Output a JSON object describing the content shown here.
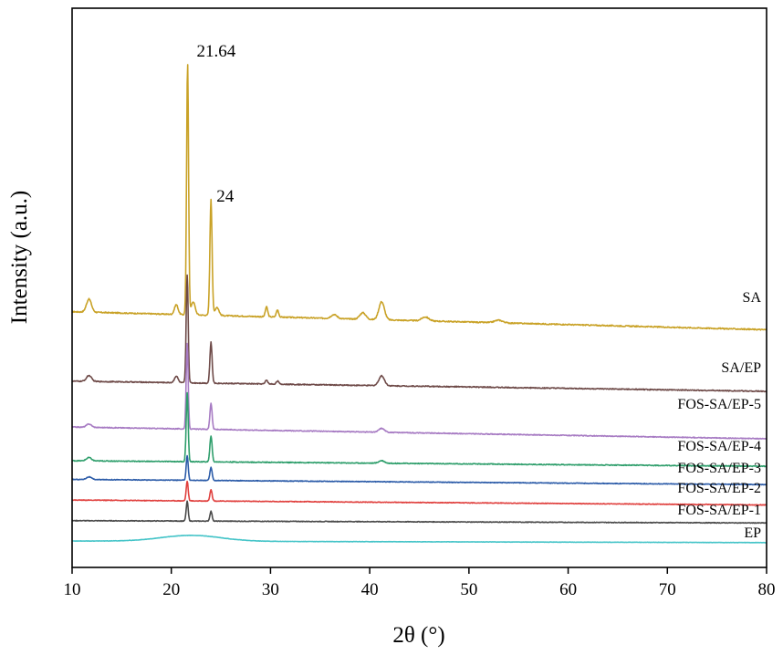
{
  "chart_data": {
    "type": "line",
    "title": "",
    "xlabel": "2θ (°)",
    "ylabel": "Intensity (a.u.)",
    "xlim": [
      10,
      80
    ],
    "xticks": [
      10,
      20,
      30,
      40,
      50,
      60,
      70,
      80
    ],
    "y_ticks_shown": false,
    "grid": false,
    "legend": "labels at right end of each curve",
    "annotations": [
      {
        "text": "21.64",
        "x": 21.64
      },
      {
        "text": "24",
        "x": 24
      }
    ],
    "series": [
      {
        "name": "SA",
        "color": "#C9A227",
        "baseline": 7.0,
        "end": 6.45,
        "noise": 0.035,
        "peaks": [
          [
            11.7,
            0.4,
            0.25
          ],
          [
            20.5,
            0.3,
            0.18
          ],
          [
            21.64,
            7.65,
            0.1
          ],
          [
            22.2,
            0.4,
            0.2
          ],
          [
            24.0,
            3.55,
            0.11
          ],
          [
            24.6,
            0.25,
            0.2
          ],
          [
            29.6,
            0.3,
            0.12
          ],
          [
            30.7,
            0.22,
            0.12
          ],
          [
            36.4,
            0.12,
            0.3
          ],
          [
            39.3,
            0.2,
            0.3
          ],
          [
            41.2,
            0.55,
            0.28
          ],
          [
            45.6,
            0.12,
            0.35
          ],
          [
            53.0,
            0.08,
            0.4
          ]
        ]
      },
      {
        "name": "SA/EP",
        "color": "#6E4A48",
        "baseline": 4.88,
        "end": 4.57,
        "noise": 0.03,
        "peaks": [
          [
            11.7,
            0.18,
            0.25
          ],
          [
            20.5,
            0.2,
            0.18
          ],
          [
            21.6,
            3.3,
            0.1
          ],
          [
            24.0,
            1.25,
            0.11
          ],
          [
            29.6,
            0.12,
            0.12
          ],
          [
            30.7,
            0.1,
            0.12
          ],
          [
            41.2,
            0.3,
            0.28
          ]
        ]
      },
      {
        "name": "FOS-SA/EP-5",
        "color": "#A77BC3",
        "baseline": 3.48,
        "end": 3.12,
        "noise": 0.025,
        "peaks": [
          [
            11.7,
            0.1,
            0.25
          ],
          [
            21.6,
            2.6,
            0.1
          ],
          [
            24.0,
            0.8,
            0.11
          ],
          [
            41.2,
            0.12,
            0.28
          ]
        ]
      },
      {
        "name": "FOS-SA/EP-4",
        "color": "#2E9E6B",
        "baseline": 2.45,
        "end": 2.28,
        "noise": 0.025,
        "peaks": [
          [
            11.7,
            0.1,
            0.25
          ],
          [
            21.6,
            2.1,
            0.1
          ],
          [
            24.0,
            0.8,
            0.11
          ],
          [
            41.2,
            0.08,
            0.28
          ]
        ]
      },
      {
        "name": "FOS-SA/EP-3",
        "color": "#2B5BA8",
        "baseline": 1.88,
        "end": 1.72,
        "noise": 0.02,
        "peaks": [
          [
            11.7,
            0.08,
            0.25
          ],
          [
            21.6,
            0.75,
            0.1
          ],
          [
            24.0,
            0.4,
            0.11
          ]
        ]
      },
      {
        "name": "FOS-SA/EP-2",
        "color": "#E0403E",
        "baseline": 1.25,
        "end": 1.1,
        "noise": 0.02,
        "peaks": [
          [
            21.6,
            0.6,
            0.1
          ],
          [
            24.0,
            0.35,
            0.11
          ]
        ]
      },
      {
        "name": "FOS-SA/EP-1",
        "color": "#4A4A4A",
        "baseline": 0.62,
        "end": 0.55,
        "noise": 0.02,
        "peaks": [
          [
            21.6,
            0.6,
            0.1
          ],
          [
            24.0,
            0.3,
            0.11
          ]
        ]
      },
      {
        "name": "EP",
        "color": "#45C4C8",
        "baseline": 0.0,
        "end": -0.05,
        "noise": 0.01,
        "peaks": [
          [
            22.0,
            0.18,
            3.0
          ]
        ]
      }
    ],
    "series_labels": [
      "SA",
      "SA/EP",
      "FOS-SA/EP-5",
      "FOS-SA/EP-4",
      "FOS-SA/EP-3",
      "FOS-SA/EP-2",
      "FOS-SA/EP-1",
      "EP"
    ]
  }
}
